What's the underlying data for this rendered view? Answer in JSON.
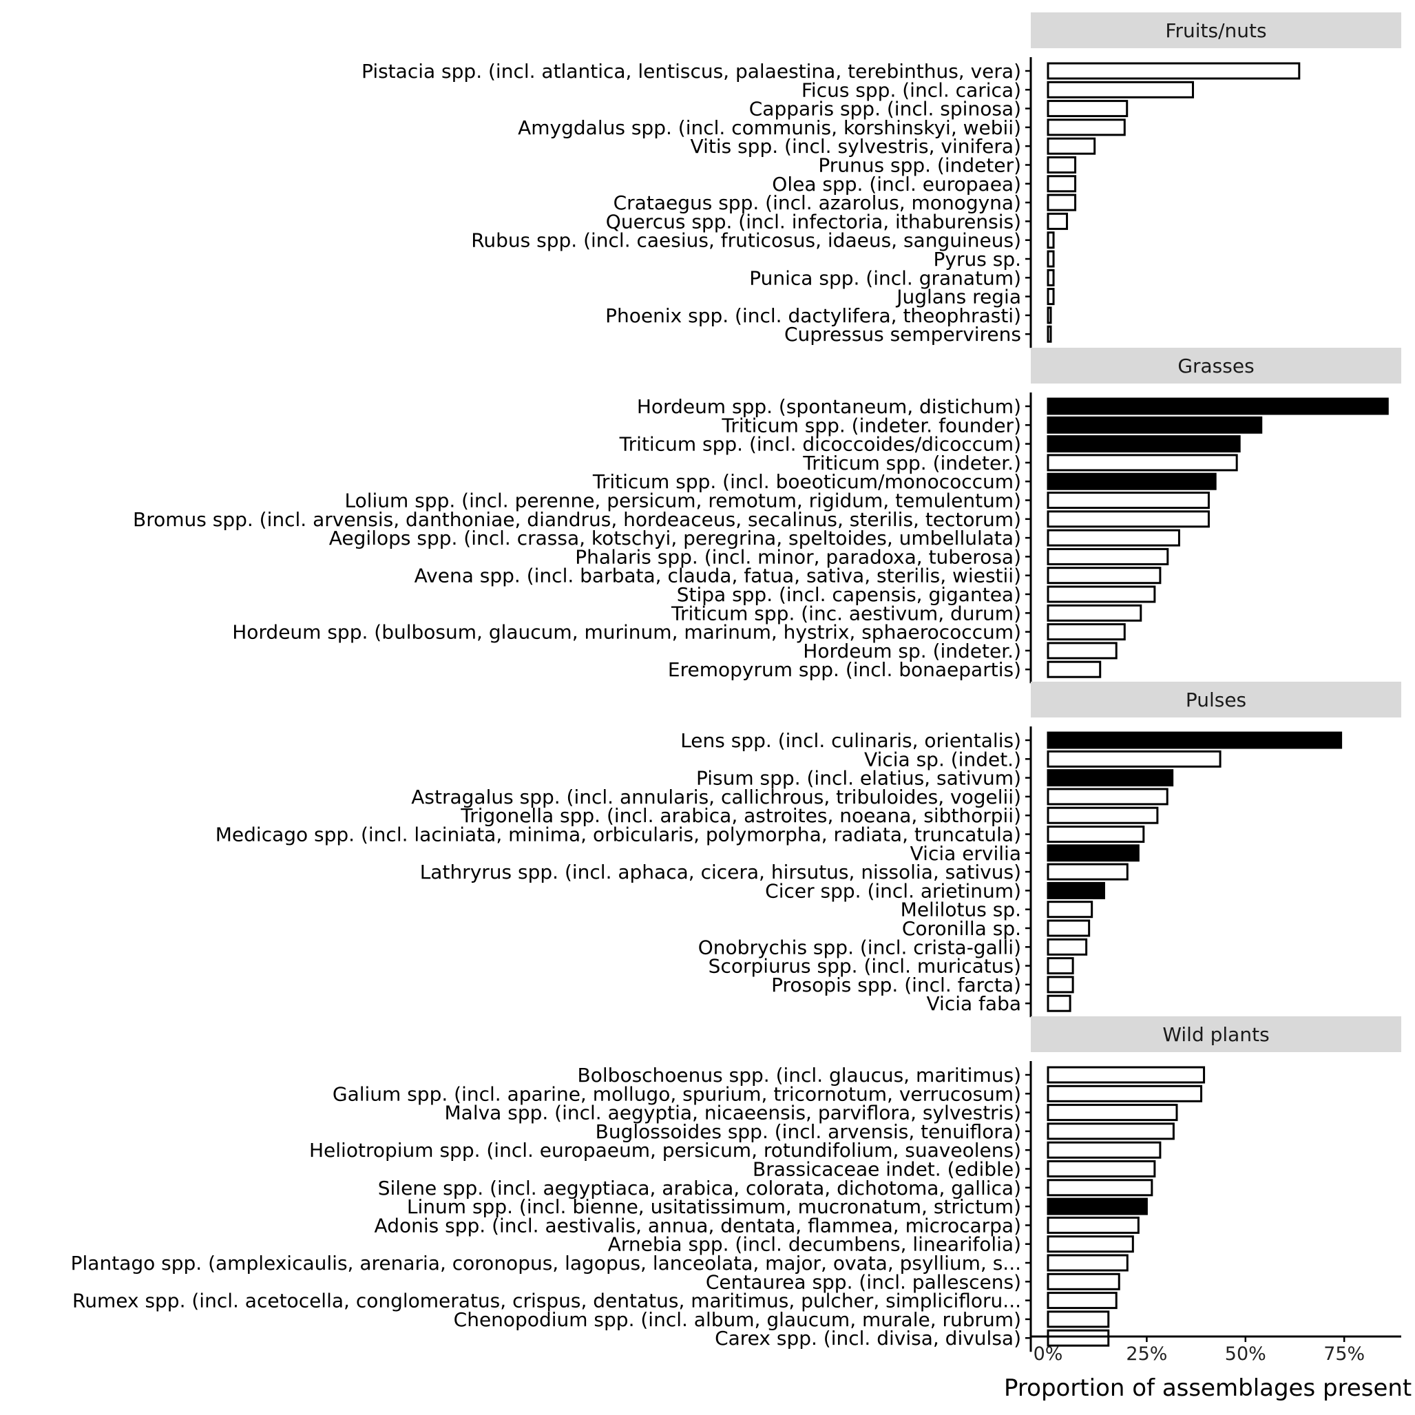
{
  "chart_data": {
    "type": "bar",
    "orientation": "horizontal",
    "xlabel": "Proportion of assemblages present",
    "xlim": [
      0,
      0.9
    ],
    "x_ticks": [
      {
        "value": 0,
        "label": "0%"
      },
      {
        "value": 0.25,
        "label": "25%"
      },
      {
        "value": 0.5,
        "label": "50%"
      },
      {
        "value": 0.75,
        "label": "75%"
      }
    ],
    "grid": false,
    "fill_legend": {
      "filled": "#000000",
      "unfilled": "#ffffff"
    },
    "panels": [
      {
        "title": "Fruits/nuts",
        "bars": [
          {
            "label": "Pistacia spp. (incl. atlantica, lentiscus, palaestina, terebinthus, vera)",
            "value": 0.636,
            "filled": false
          },
          {
            "label": "Ficus spp. (incl. carica)",
            "value": 0.367,
            "filled": false
          },
          {
            "label": "Capparis spp. (incl. spinosa)",
            "value": 0.2,
            "filled": false
          },
          {
            "label": "Amygdalus spp. (incl. communis, korshinskyi, webii)",
            "value": 0.194,
            "filled": false
          },
          {
            "label": "Vitis spp. (incl. sylvestris, vinifera)",
            "value": 0.118,
            "filled": false
          },
          {
            "label": "Prunus spp. (indeter)",
            "value": 0.069,
            "filled": false
          },
          {
            "label": "Olea spp. (incl. europaea)",
            "value": 0.069,
            "filled": false
          },
          {
            "label": "Crataegus spp. (incl. azarolus, monogyna)",
            "value": 0.069,
            "filled": false
          },
          {
            "label": "Quercus spp. (incl. infectoria, ithaburensis)",
            "value": 0.048,
            "filled": false
          },
          {
            "label": "Rubus spp. (incl. caesius, fruticosus, idaeus, sanguineus)",
            "value": 0.014,
            "filled": false
          },
          {
            "label": "Pyrus sp.",
            "value": 0.014,
            "filled": false
          },
          {
            "label": "Punica spp. (incl. granatum)",
            "value": 0.014,
            "filled": false
          },
          {
            "label": "Juglans regia",
            "value": 0.014,
            "filled": false
          },
          {
            "label": "Phoenix spp. (incl. dactylifera, theophrasti)",
            "value": 0.007,
            "filled": false
          },
          {
            "label": "Cupressus sempervirens",
            "value": 0.007,
            "filled": false
          }
        ]
      },
      {
        "title": "Grasses",
        "bars": [
          {
            "label": "Hordeum spp. (spontaneum, distichum)",
            "value": 0.86,
            "filled": true
          },
          {
            "label": "Triticum spp. (indeter. founder)",
            "value": 0.54,
            "filled": true
          },
          {
            "label": "Triticum spp. (incl. dicoccoides/dicoccum)",
            "value": 0.485,
            "filled": true
          },
          {
            "label": "Triticum spp. (indeter.)",
            "value": 0.478,
            "filled": false
          },
          {
            "label": "Triticum spp. (incl. boeoticum/monococcum)",
            "value": 0.424,
            "filled": true
          },
          {
            "label": "Lolium spp. (incl. perenne, persicum, remotum, rigidum, temulentum)",
            "value": 0.407,
            "filled": false
          },
          {
            "label": "Bromus spp. (incl. arvensis, danthoniae, diandrus, hordeaceus, secalinus, sterilis, tectorum)",
            "value": 0.407,
            "filled": false
          },
          {
            "label": "Aegilops spp. (incl. crassa, kotschyi, peregrina, speltoides, umbellulata)",
            "value": 0.332,
            "filled": false
          },
          {
            "label": "Phalaris spp. (incl. minor, paradoxa, tuberosa)",
            "value": 0.303,
            "filled": false
          },
          {
            "label": "Avena spp. (incl. barbata, clauda, fatua, sativa, sterilis, wiestii)",
            "value": 0.284,
            "filled": false
          },
          {
            "label": "Stipa spp. (incl. capensis, gigantea)",
            "value": 0.27,
            "filled": false
          },
          {
            "label": "Triticum spp. (inc. aestivum, durum)",
            "value": 0.235,
            "filled": false
          },
          {
            "label": "Hordeum spp. (bulbosum, glaucum, murinum, marinum, hystrix, sphaerococcum)",
            "value": 0.194,
            "filled": false
          },
          {
            "label": "Hordeum sp. (indeter.)",
            "value": 0.173,
            "filled": false
          },
          {
            "label": "Eremopyrum spp. (incl. bonaepartis)",
            "value": 0.132,
            "filled": false
          }
        ]
      },
      {
        "title": "Pulses",
        "bars": [
          {
            "label": "Lens spp. (incl. culinaris, orientalis)",
            "value": 0.742,
            "filled": true
          },
          {
            "label": "Vicia sp. (indet.)",
            "value": 0.436,
            "filled": false
          },
          {
            "label": "Pisum spp. (incl. elatius, sativum)",
            "value": 0.315,
            "filled": true
          },
          {
            "label": "Astragalus spp. (incl. annularis, callichrous, tribuloides, vogelii)",
            "value": 0.302,
            "filled": false
          },
          {
            "label": "Trigonella spp. (incl. arabica, astroites, noeana, sibthorpii)",
            "value": 0.277,
            "filled": false
          },
          {
            "label": "Medicago spp. (incl. laciniata, minima, orbicularis, polymorpha, radiata, truncatula)",
            "value": 0.242,
            "filled": false
          },
          {
            "label": "Vicia ervilia",
            "value": 0.229,
            "filled": true
          },
          {
            "label": "Lathryrus spp. (incl. aphaca, cicera, hirsutus, nissolia, sativus)",
            "value": 0.201,
            "filled": false
          },
          {
            "label": "Cicer spp. (incl. arietinum)",
            "value": 0.142,
            "filled": true
          },
          {
            "label": "Melilotus sp.",
            "value": 0.111,
            "filled": false
          },
          {
            "label": "Coronilla sp.",
            "value": 0.104,
            "filled": false
          },
          {
            "label": "Onobrychis spp. (incl. crista-galli)",
            "value": 0.097,
            "filled": false
          },
          {
            "label": "Scorpiurus spp. (incl. muricatus)",
            "value": 0.063,
            "filled": false
          },
          {
            "label": "Prosopis spp. (incl. farcta)",
            "value": 0.063,
            "filled": false
          },
          {
            "label": "Vicia faba",
            "value": 0.056,
            "filled": false
          }
        ]
      },
      {
        "title": "Wild plants",
        "bars": [
          {
            "label": "Bolboschoenus spp. (incl. glaucus, maritimus)",
            "value": 0.395,
            "filled": false
          },
          {
            "label": "Galium spp. (incl. aparine, mollugo, spurium, tricornotum, verrucosum)",
            "value": 0.388,
            "filled": false
          },
          {
            "label": "Malva spp. (incl. aegyptia, nicaeensis, parviflora, sylvestris)",
            "value": 0.326,
            "filled": false
          },
          {
            "label": "Buglossoides spp. (incl. arvensis, tenuiflora)",
            "value": 0.318,
            "filled": false
          },
          {
            "label": "Heliotropium spp. (incl. europaeum, persicum, rotundifolium, suaveolens)",
            "value": 0.284,
            "filled": false
          },
          {
            "label": "Brassicaceae indet. (edible)",
            "value": 0.27,
            "filled": false
          },
          {
            "label": "Silene spp. (incl. aegyptiaca, arabica, colorata, dichotoma, gallica)",
            "value": 0.263,
            "filled": false
          },
          {
            "label": "Linum spp. (incl. bienne, usitatissimum, mucronatum, strictum)",
            "value": 0.25,
            "filled": true
          },
          {
            "label": "Adonis spp. (incl. aestivalis, annua, dentata, flammea, microcarpa)",
            "value": 0.229,
            "filled": false
          },
          {
            "label": "Arnebia spp. (incl. decumbens, linearifolia)",
            "value": 0.215,
            "filled": false
          },
          {
            "label": "Plantago spp. (amplexicaulis, arenaria, coronopus, lagopus, lanceolata, major, ovata, psyllium, s...",
            "value": 0.201,
            "filled": false
          },
          {
            "label": "Centaurea spp. (incl. pallescens)",
            "value": 0.18,
            "filled": false
          },
          {
            "label": "Rumex spp. (incl. acetocella, conglomeratus, crispus, dentatus, maritimus, pulcher, simplicifloru...",
            "value": 0.173,
            "filled": false
          },
          {
            "label": "Chenopodium spp. (incl. album, glaucum, murale, rubrum)",
            "value": 0.153,
            "filled": false
          },
          {
            "label": "Carex spp. (incl. divisa, divulsa)",
            "value": 0.153,
            "filled": false
          }
        ]
      }
    ]
  }
}
